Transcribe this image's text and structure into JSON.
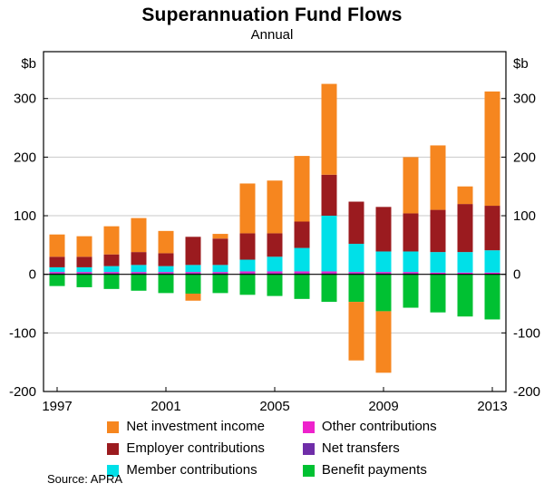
{
  "title": "Superannuation Fund Flows",
  "subtitle": "Annual",
  "source": "Source: APRA",
  "chart_data": {
    "type": "bar",
    "stacked": true,
    "title": "Superannuation Fund Flows",
    "subtitle": "Annual",
    "unit_left": "$b",
    "unit_right": "$b",
    "ylim": [
      -200,
      380
    ],
    "yticks": [
      -200,
      -100,
      0,
      100,
      200,
      300
    ],
    "xticks": [
      1997,
      2001,
      2005,
      2009,
      2013
    ],
    "years": [
      1997,
      1998,
      1999,
      2000,
      2001,
      2002,
      2003,
      2004,
      2005,
      2006,
      2007,
      2008,
      2009,
      2010,
      2011,
      2012,
      2013
    ],
    "series": [
      {
        "key": "net_transfers",
        "label": "Net transfers",
        "color": "#6F2DA8",
        "values": [
          2,
          2,
          2,
          2,
          2,
          2,
          2,
          2,
          2,
          2,
          2,
          2,
          2,
          2,
          1,
          1,
          1
        ]
      },
      {
        "key": "other_contributions",
        "label": "Other contributions",
        "color": "#EE22CC",
        "values": [
          2,
          2,
          2,
          2,
          2,
          2,
          2,
          3,
          3,
          3,
          3,
          2,
          2,
          2,
          2,
          2,
          2
        ]
      },
      {
        "key": "member_contributions",
        "label": "Member contributions",
        "color": "#00E0E8",
        "values": [
          8,
          8,
          10,
          12,
          10,
          12,
          12,
          20,
          25,
          40,
          95,
          48,
          35,
          35,
          35,
          35,
          38
        ]
      },
      {
        "key": "employer_contributions",
        "label": "Employer contributions",
        "color": "#9B1B1F",
        "values": [
          18,
          18,
          20,
          22,
          22,
          48,
          45,
          45,
          40,
          45,
          70,
          72,
          76,
          65,
          72,
          82,
          76
        ]
      },
      {
        "key": "benefit_payments",
        "label": "Benefit payments",
        "color": "#00C132",
        "values": [
          -20,
          -22,
          -25,
          -28,
          -32,
          -33,
          -32,
          -35,
          -37,
          -42,
          -47,
          -47,
          -63,
          -57,
          -65,
          -72,
          -77
        ]
      },
      {
        "key": "net_investment_income",
        "label": "Net investment income",
        "color": "#F6861F",
        "values": [
          38,
          35,
          48,
          58,
          38,
          -12,
          8,
          85,
          90,
          112,
          155,
          -100,
          -105,
          96,
          110,
          30,
          195
        ]
      }
    ]
  }
}
